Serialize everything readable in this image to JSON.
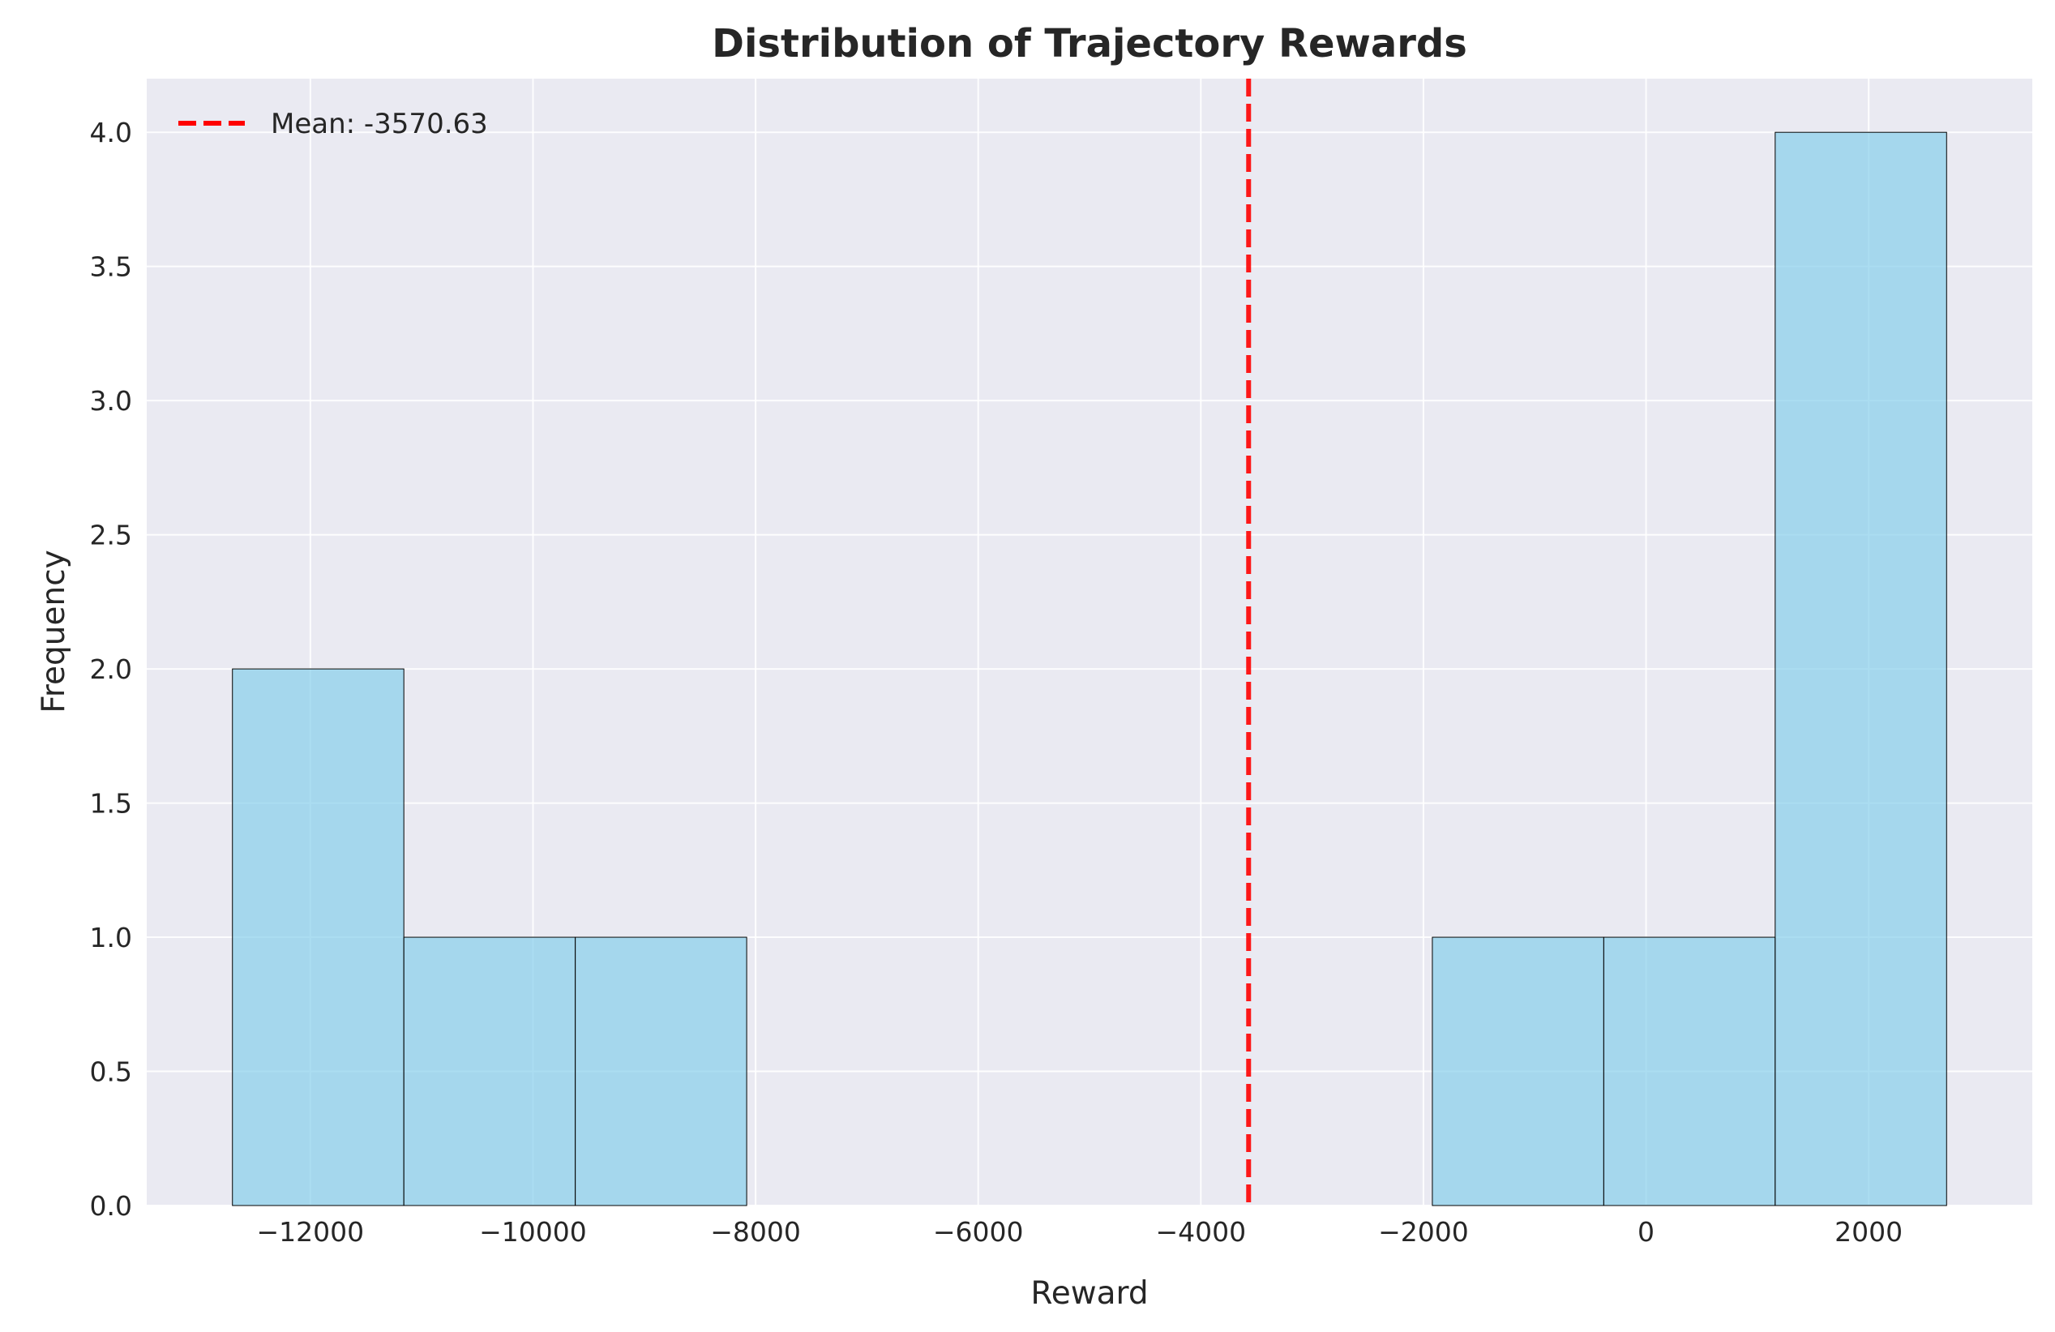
{
  "chart_data": {
    "type": "bar",
    "title": "Distribution of Trajectory Rewards",
    "xlabel": "Reward",
    "ylabel": "Frequency",
    "bins": [
      {
        "start": -12700,
        "end": -11160,
        "count": 2
      },
      {
        "start": -11160,
        "end": -9620,
        "count": 1
      },
      {
        "start": -9620,
        "end": -8080,
        "count": 1
      },
      {
        "start": -8080,
        "end": -6540,
        "count": 0
      },
      {
        "start": -6540,
        "end": -5000,
        "count": 0
      },
      {
        "start": -5000,
        "end": -3460,
        "count": 0
      },
      {
        "start": -3460,
        "end": -1920,
        "count": 0
      },
      {
        "start": -1920,
        "end": -380,
        "count": 1
      },
      {
        "start": -380,
        "end": 1160,
        "count": 1
      },
      {
        "start": 1160,
        "end": 2700,
        "count": 4
      }
    ],
    "xlim": [
      -13470,
      3470
    ],
    "ylim": [
      0,
      4.2
    ],
    "xticks": [
      -12000,
      -10000,
      -8000,
      -6000,
      -4000,
      -2000,
      0,
      2000
    ],
    "xtick_labels": [
      "−12000",
      "−10000",
      "−8000",
      "−6000",
      "−4000",
      "−2000",
      "0",
      "2000"
    ],
    "yticks": [
      0.0,
      0.5,
      1.0,
      1.5,
      2.0,
      2.5,
      3.0,
      3.5,
      4.0
    ],
    "ytick_labels": [
      "0.0",
      "0.5",
      "1.0",
      "1.5",
      "2.0",
      "2.5",
      "3.0",
      "3.5",
      "4.0"
    ],
    "mean_line": {
      "value": -3570.63,
      "label": "Mean: -3570.63"
    },
    "grid": true,
    "legend_position": "top-left",
    "colors": {
      "plot_background": "#EAEAF2",
      "grid": "#FFFFFF",
      "bar_fill": "#87CEEB",
      "bar_edge": "#000000",
      "mean_line": "#FF0000",
      "text": "#262626"
    }
  }
}
